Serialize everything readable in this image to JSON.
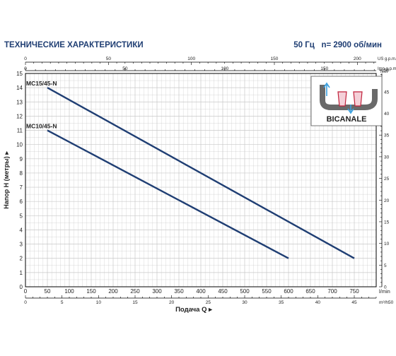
{
  "header": {
    "title": "ТЕХНИЧЕСКИЕ ХАРАКТЕРИСТИКИ",
    "freq": "50 Гц",
    "speed": "n= 2900 об/мин"
  },
  "inset": {
    "label": "BICANALE"
  },
  "colors": {
    "curve": "#1f3e73",
    "grid": "#c8c8c8",
    "axis": "#000000",
    "title": "#1f3e73"
  },
  "chart_data": {
    "type": "line",
    "xlabel": "Подача Q",
    "ylabel": "Напор H (метры)",
    "x_unit": "l/min",
    "xlim": [
      0,
      800
    ],
    "ylim": [
      0,
      15
    ],
    "x_ticks": [
      0,
      50,
      100,
      150,
      200,
      250,
      300,
      350,
      400,
      450,
      500,
      550,
      600,
      650,
      700,
      750
    ],
    "y_ticks": [
      0,
      1,
      2,
      3,
      4,
      5,
      6,
      7,
      8,
      9,
      10,
      11,
      12,
      13,
      14,
      15
    ],
    "series": [
      {
        "name": "MC15/45-N",
        "x": [
          50,
          750
        ],
        "y": [
          14,
          2
        ]
      },
      {
        "name": "MC10/45-N",
        "x": [
          50,
          600
        ],
        "y": [
          11,
          2
        ]
      }
    ],
    "secondary_axes": {
      "us_gpm": {
        "unit": "US g.p.m.",
        "ticks": [
          0,
          50,
          100,
          150,
          200
        ]
      },
      "imp_gpm": {
        "unit": "Imp g.p.m.",
        "ticks": [
          0,
          50,
          100,
          150
        ]
      },
      "m3h": {
        "unit": "m³/h",
        "ticks": [
          0,
          5,
          10,
          15,
          20,
          25,
          30,
          35,
          40,
          45,
          50
        ]
      },
      "feet": {
        "unit": "feet",
        "ticks": [
          0,
          5,
          10,
          15,
          20,
          25,
          30,
          35,
          40,
          45,
          50
        ]
      }
    }
  }
}
